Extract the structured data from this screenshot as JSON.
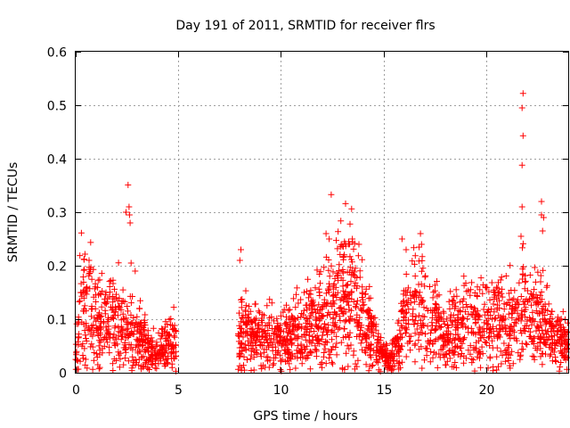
{
  "chart_data": {
    "type": "scatter",
    "title": "Day 191 of 2011, SRMTID for receiver flrs",
    "xlabel": "GPS time / hours",
    "ylabel": "SRMTID / TECUs",
    "xlim": [
      0,
      24
    ],
    "ylim": [
      0,
      0.6
    ],
    "x_ticks": [
      0,
      5,
      10,
      15,
      20
    ],
    "x_tick_labels": [
      "0",
      "5",
      "10",
      "15",
      "20"
    ],
    "y_ticks": [
      0,
      0.1,
      0.2,
      0.3,
      0.4,
      0.5,
      0.6
    ],
    "y_tick_labels": [
      "0",
      "0.1",
      "0.2",
      "0.3",
      "0.4",
      "0.5",
      "0.6"
    ],
    "grid": true,
    "marker": "+",
    "color": "#ff0000",
    "series": [
      {
        "name": "SRMTID",
        "segments": [
          {
            "x_start": 0.0,
            "x_end": 4.9,
            "profile": [
              [
                0.0,
                0.02
              ],
              [
                0.2,
                0.12
              ],
              [
                0.5,
                0.13
              ],
              [
                1.0,
                0.1
              ],
              [
                1.5,
                0.09
              ],
              [
                2.0,
                0.11
              ],
              [
                2.5,
                0.08
              ],
              [
                3.0,
                0.07
              ],
              [
                3.5,
                0.05
              ],
              [
                4.0,
                0.04
              ],
              [
                4.5,
                0.05
              ],
              [
                4.9,
                0.06
              ]
            ]
          },
          {
            "x_start": 7.9,
            "x_end": 24.0,
            "profile": [
              [
                7.9,
                0.08
              ],
              [
                8.5,
                0.07
              ],
              [
                9.0,
                0.06
              ],
              [
                9.5,
                0.07
              ],
              [
                10.0,
                0.06
              ],
              [
                10.5,
                0.07
              ],
              [
                11.0,
                0.08
              ],
              [
                11.5,
                0.09
              ],
              [
                12.0,
                0.1
              ],
              [
                12.5,
                0.12
              ],
              [
                13.0,
                0.15
              ],
              [
                13.5,
                0.14
              ],
              [
                14.0,
                0.1
              ],
              [
                14.5,
                0.07
              ],
              [
                15.0,
                0.03
              ],
              [
                15.3,
                0.02
              ],
              [
                15.7,
                0.05
              ],
              [
                16.0,
                0.1
              ],
              [
                16.5,
                0.12
              ],
              [
                17.0,
                0.11
              ],
              [
                17.5,
                0.09
              ],
              [
                18.0,
                0.07
              ],
              [
                18.5,
                0.08
              ],
              [
                19.0,
                0.09
              ],
              [
                19.5,
                0.09
              ],
              [
                20.0,
                0.1
              ],
              [
                20.5,
                0.11
              ],
              [
                21.0,
                0.09
              ],
              [
                21.5,
                0.09
              ],
              [
                22.0,
                0.12
              ],
              [
                22.5,
                0.1
              ],
              [
                23.0,
                0.08
              ],
              [
                23.5,
                0.06
              ],
              [
                24.0,
                0.05
              ]
            ]
          }
        ],
        "peaks": [
          {
            "x": 2.55,
            "y": 0.351
          },
          {
            "x": 2.6,
            "y": 0.31
          },
          {
            "x": 2.62,
            "y": 0.295
          },
          {
            "x": 2.65,
            "y": 0.28
          },
          {
            "x": 2.45,
            "y": 0.3
          },
          {
            "x": 2.7,
            "y": 0.205
          },
          {
            "x": 0.65,
            "y": 0.21
          },
          {
            "x": 2.9,
            "y": 0.19
          },
          {
            "x": 8.05,
            "y": 0.23
          },
          {
            "x": 8.0,
            "y": 0.21
          },
          {
            "x": 12.45,
            "y": 0.333
          },
          {
            "x": 13.15,
            "y": 0.316
          },
          {
            "x": 12.2,
            "y": 0.26
          },
          {
            "x": 12.35,
            "y": 0.25
          },
          {
            "x": 13.1,
            "y": 0.245
          },
          {
            "x": 13.3,
            "y": 0.245
          },
          {
            "x": 13.8,
            "y": 0.24
          },
          {
            "x": 15.9,
            "y": 0.25
          },
          {
            "x": 16.8,
            "y": 0.26
          },
          {
            "x": 16.1,
            "y": 0.23
          },
          {
            "x": 16.85,
            "y": 0.24
          },
          {
            "x": 21.8,
            "y": 0.522
          },
          {
            "x": 21.75,
            "y": 0.495
          },
          {
            "x": 21.8,
            "y": 0.443
          },
          {
            "x": 21.75,
            "y": 0.388
          },
          {
            "x": 22.7,
            "y": 0.32
          },
          {
            "x": 21.75,
            "y": 0.31
          },
          {
            "x": 22.8,
            "y": 0.29
          },
          {
            "x": 22.7,
            "y": 0.295
          },
          {
            "x": 22.75,
            "y": 0.265
          },
          {
            "x": 21.7,
            "y": 0.255
          }
        ]
      }
    ]
  }
}
